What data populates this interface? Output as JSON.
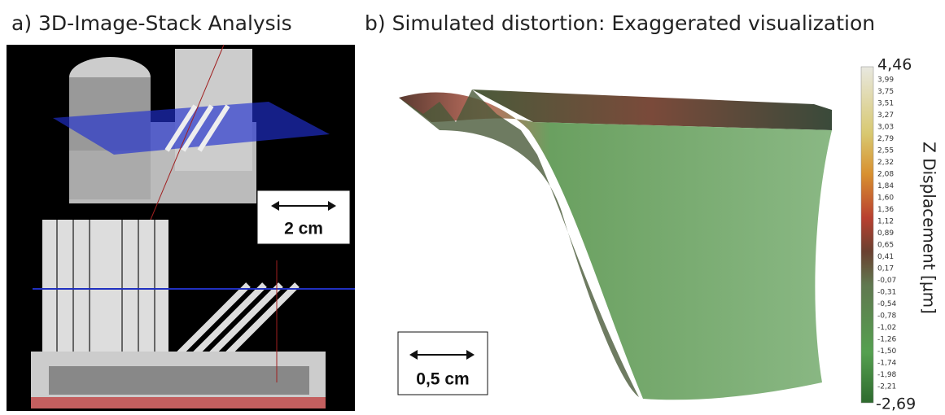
{
  "panel_a": {
    "title": "a) 3D-Image-Stack Analysis",
    "scale_bar": "2 cm"
  },
  "panel_b": {
    "title": "b) Simulated distortion: Exaggerated visualization",
    "scale_bar": "0,5 cm",
    "colorbar": {
      "label": "Z Displacement [µm]",
      "max": "4,46",
      "min": "-2,69",
      "ticks": [
        "3,99",
        "3,75",
        "3,51",
        "3,27",
        "3,03",
        "2,79",
        "2,55",
        "2,32",
        "2,08",
        "1,84",
        "1,60",
        "1,36",
        "1,12",
        "0,89",
        "0,65",
        "0,41",
        "0,17",
        "-0,07",
        "-0,31",
        "-0,54",
        "-0,78",
        "-1,02",
        "-1,26",
        "-1,50",
        "-1,74",
        "-1,98",
        "-2,21"
      ]
    }
  }
}
